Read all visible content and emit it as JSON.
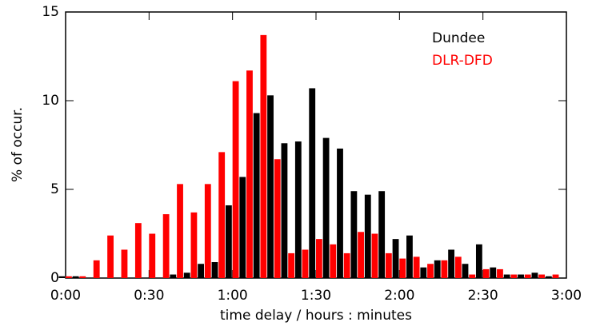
{
  "chart_data": {
    "type": "bar",
    "x_label": "time delay / hours : minutes",
    "y_label": "% of occur.",
    "x": [
      0,
      5,
      10,
      15,
      20,
      25,
      30,
      35,
      40,
      45,
      50,
      55,
      60,
      65,
      70,
      75,
      80,
      85,
      90,
      95,
      100,
      105,
      110,
      115,
      120,
      125,
      130,
      135,
      140,
      145,
      150,
      155,
      160,
      165,
      170,
      175
    ],
    "series": [
      {
        "name": "Dundee",
        "color": "#000000",
        "values": [
          0.1,
          0.1,
          0,
          0,
          0,
          0,
          0,
          0,
          0.2,
          0.3,
          0.8,
          0.9,
          4.1,
          5.7,
          9.3,
          10.3,
          7.6,
          7.7,
          10.7,
          7.9,
          7.3,
          4.9,
          4.7,
          4.9,
          2.2,
          2.4,
          0.6,
          1.0,
          1.6,
          0.8,
          1.9,
          0.6,
          0.2,
          0.2,
          0.3,
          0.1
        ]
      },
      {
        "name": "DLR-DFD",
        "color": "#ff0000",
        "values": [
          0.1,
          0.1,
          1.0,
          2.4,
          1.6,
          3.1,
          2.5,
          3.6,
          5.3,
          3.7,
          5.3,
          7.1,
          11.1,
          11.7,
          13.7,
          6.7,
          1.4,
          1.6,
          2.2,
          1.9,
          1.4,
          2.6,
          2.5,
          1.4,
          1.1,
          1.2,
          0.8,
          1.0,
          1.2,
          0.2,
          0.5,
          0.5,
          0.2,
          0.2,
          0.2,
          0.2
        ]
      }
    ],
    "xlim": [
      0,
      180
    ],
    "xticks": [
      {
        "value": 0,
        "label": "0:00"
      },
      {
        "value": 30,
        "label": "0:30"
      },
      {
        "value": 60,
        "label": "1:00"
      },
      {
        "value": 90,
        "label": "1:30"
      },
      {
        "value": 120,
        "label": "2:00"
      },
      {
        "value": 150,
        "label": "2:30"
      },
      {
        "value": 180,
        "label": "3:00"
      }
    ],
    "ylim": [
      0,
      15
    ],
    "yticks": [
      0,
      5,
      10,
      15
    ],
    "legend": "top-right"
  }
}
